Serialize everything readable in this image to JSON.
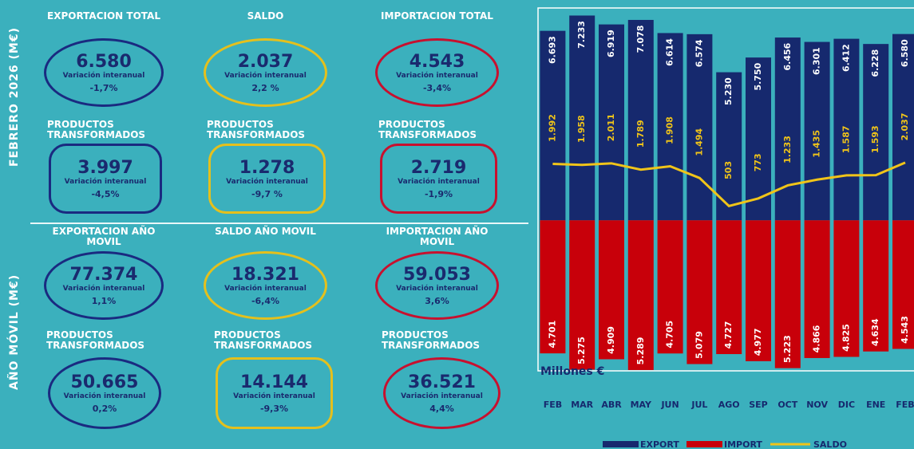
{
  "panels": [
    {
      "label": "FEBRERO 2026 (M€)",
      "cards": [
        {
          "title": "EXPORTACION TOTAL",
          "value": "6.580",
          "note": "Variación interanual",
          "change": "-1,7%"
        },
        {
          "title": "SALDO",
          "value": "2.037",
          "note": "Variación interanual",
          "change": "2,2 %"
        },
        {
          "title": "IMPORTACION TOTAL",
          "value": "4.543",
          "note": "Variación interanual",
          "change": "-3,4%"
        },
        {
          "title": "PRODUCTOS TRANSFORMADOS",
          "value": "3.997",
          "note": "Variación interanual",
          "change": "-4,5%"
        },
        {
          "title": "PRODUCTOS TRANSFORMADOS",
          "value": "1.278",
          "note": "Variación interanual",
          "change": "-9,7 %"
        },
        {
          "title": "PRODUCTOS TRANSFORMADOS",
          "value": "2.719",
          "note": "Variación interanual",
          "change": "-1,9%"
        }
      ]
    },
    {
      "label": "AÑO MÓVIL (M€)",
      "cards": [
        {
          "title": "EXPORTACION AÑO MOVIL",
          "value": "77.374",
          "note": "Variación interanual",
          "change": "1,1%"
        },
        {
          "title": "SALDO AÑO MOVIL",
          "value": "18.321",
          "note": "Variación interanual",
          "change": "-6,4%"
        },
        {
          "title": "IMPORTACION AÑO MOVIL",
          "value": "59.053",
          "note": "Variación interanual",
          "change": "3,6%"
        },
        {
          "title": "PRODUCTOS TRANSFORMADOS",
          "value": "50.665",
          "note": "Variación interanual",
          "change": "0,2%"
        },
        {
          "title": "PRODUCTOS TRANSFORMADOS",
          "value": "14.144",
          "note": "Variación interanual",
          "change": "-9,3%"
        },
        {
          "title": "PRODUCTOS TRANSFORMADOS",
          "value": "36.521",
          "note": "Variación interanual",
          "change": "4,4%"
        }
      ]
    }
  ],
  "chart_data": {
    "type": "bar-line",
    "annotation": "Millones €",
    "categories": [
      "FEB",
      "MAR",
      "ABR",
      "MAY",
      "JUN",
      "JUL",
      "AGO",
      "SEP",
      "OCT",
      "NOV",
      "DIC",
      "ENE",
      "FEB"
    ],
    "ylim": [
      -5600,
      7500
    ],
    "series": [
      {
        "name": "EXPORT",
        "color": "#16296e",
        "direction": "up",
        "values": [
          6693,
          7233,
          6919,
          7078,
          6614,
          6574,
          5230,
          5750,
          6456,
          6301,
          6412,
          6228,
          6580
        ],
        "value_labels": [
          "6.693",
          "7.233",
          "6.919",
          "7.078",
          "6.614",
          "6.574",
          "5.230",
          "5.750",
          "6.456",
          "6.301",
          "6.412",
          "6.228",
          "6.580"
        ]
      },
      {
        "name": "IMPORT",
        "color": "#c8000a",
        "direction": "down",
        "values": [
          4701,
          5275,
          4909,
          5289,
          4705,
          5079,
          4727,
          4977,
          5223,
          4866,
          4825,
          4634,
          4543
        ],
        "value_labels": [
          "4.701",
          "5.275",
          "4.909",
          "5.289",
          "4.705",
          "5.079",
          "4.727",
          "4.977",
          "5.223",
          "4.866",
          "4.825",
          "4.634",
          "4.543"
        ]
      },
      {
        "name": "SALDO",
        "color": "#f0c419",
        "kind": "line",
        "values": [
          1992,
          1958,
          2011,
          1789,
          1908,
          1494,
          503,
          773,
          1233,
          1435,
          1587,
          1593,
          2037
        ],
        "value_labels": [
          "1.992",
          "1.958",
          "2.011",
          "1.789",
          "1.908",
          "1.494",
          "503",
          "773",
          "1.233",
          "1.435",
          "1.587",
          "1.593",
          "2.037"
        ]
      }
    ]
  }
}
